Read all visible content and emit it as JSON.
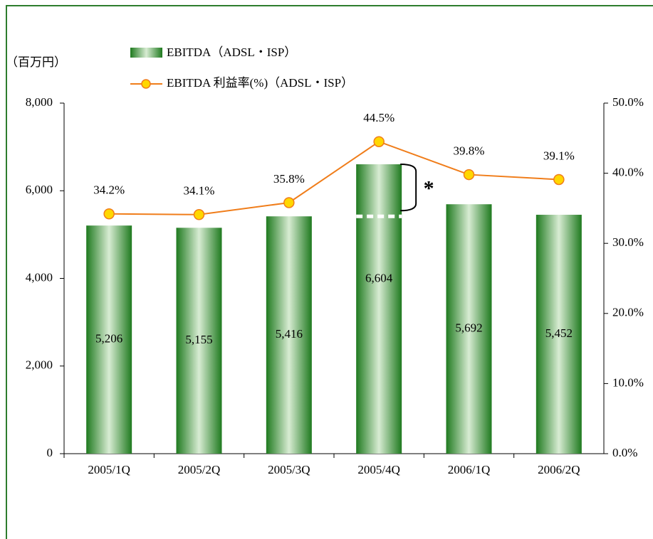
{
  "chart_data": {
    "type": "bar",
    "y_axis_label": "（百万円）",
    "categories": [
      "2005/1Q",
      "2005/2Q",
      "2005/3Q",
      "2005/4Q",
      "2006/1Q",
      "2006/2Q"
    ],
    "series": [
      {
        "name": "EBITDA（ADSL・ISP）",
        "type": "bar",
        "color": "#2e8b2e",
        "values": [
          5206,
          5155,
          5416,
          6604,
          5692,
          5452
        ],
        "value_labels": [
          "5,206",
          "5,155",
          "5,416",
          "6,604",
          "5,692",
          "5,452"
        ]
      },
      {
        "name": "EBITDA 利益率(%)（ADSL・ISP）",
        "type": "line",
        "axis": "y2",
        "color": "#f07d1a",
        "values": [
          34.2,
          34.1,
          35.8,
          44.5,
          39.8,
          39.1
        ],
        "value_labels": [
          "34.2%",
          "34.1%",
          "35.8%",
          "44.5%",
          "39.8%",
          "39.1%"
        ]
      }
    ],
    "ylim": [
      0,
      8000
    ],
    "yticks": [
      0,
      {
        "value": 2000,
        "label": "2,000"
      },
      {
        "value": 4000,
        "label": "4,000"
      },
      {
        "value": 6000,
        "label": "6,000"
      },
      {
        "value": 8000,
        "label": "8,000"
      }
    ],
    "y2lim": [
      0,
      50
    ],
    "y2ticks": [
      {
        "value": 0,
        "label": "0.0%"
      },
      {
        "value": 10,
        "label": "10.0%"
      },
      {
        "value": 20,
        "label": "20.0%"
      },
      {
        "value": 30,
        "label": "30.0%"
      },
      {
        "value": 40,
        "label": "40.0%"
      },
      {
        "value": 50,
        "label": "50.0%"
      }
    ],
    "annotation": "*"
  }
}
